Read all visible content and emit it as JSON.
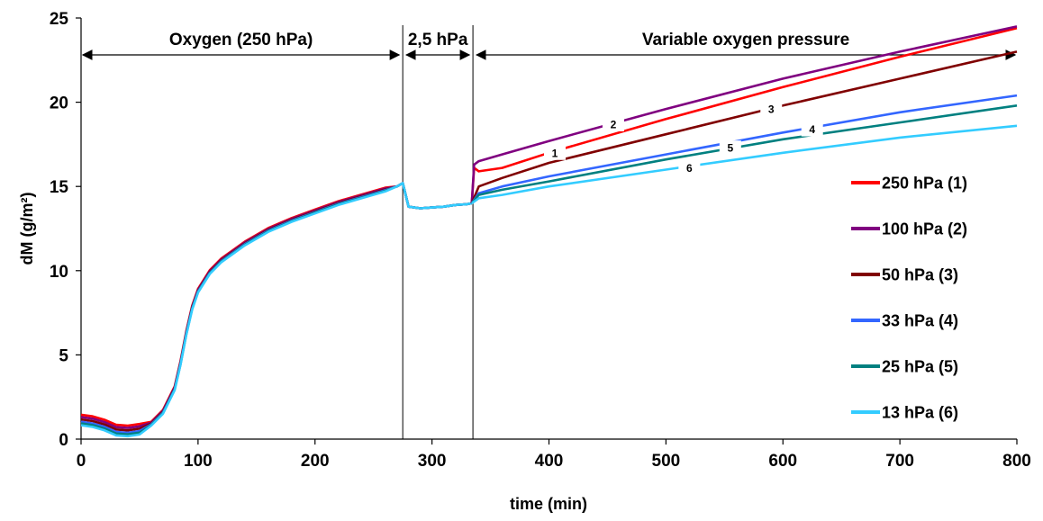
{
  "chart_data": {
    "type": "line",
    "xlabel": "time (min)",
    "ylabel": "dM (g/m²)",
    "xlim": [
      0,
      800
    ],
    "ylim": [
      0,
      25
    ],
    "x_ticks": [
      "0",
      "100",
      "200",
      "300",
      "400",
      "500",
      "600",
      "700",
      "800"
    ],
    "y_ticks": [
      "0",
      "5",
      "10",
      "15",
      "20",
      "25"
    ],
    "grid": false,
    "legend_position": "right",
    "phases": [
      {
        "label": "Oxygen (250 hPa)",
        "x_start": 0,
        "x_end": 275
      },
      {
        "label": "2,5 hPa",
        "x_start": 275,
        "x_end": 335
      },
      {
        "label": "Variable oxygen pressure",
        "x_start": 335,
        "x_end": 800
      }
    ],
    "phase_boundaries": [
      275,
      335
    ],
    "common_curve": {
      "x": [
        0,
        10,
        20,
        30,
        40,
        50,
        60,
        70,
        80,
        85,
        90,
        95,
        100,
        110,
        120,
        140,
        160,
        180,
        200,
        220,
        240,
        260,
        270,
        275,
        280,
        290,
        300,
        310,
        320,
        330,
        334
      ],
      "y": [
        1.1,
        1.0,
        0.8,
        0.5,
        0.45,
        0.55,
        0.9,
        1.6,
        3.0,
        4.5,
        6.3,
        7.8,
        8.8,
        9.9,
        10.6,
        11.6,
        12.4,
        13.0,
        13.5,
        14.0,
        14.4,
        14.8,
        15.0,
        15.2,
        13.8,
        13.7,
        13.75,
        13.8,
        13.9,
        13.95,
        14.0
      ]
    },
    "series": [
      {
        "name": "250 hPa (1)",
        "label": "1",
        "color": "#ff0000",
        "x": [
          334,
          336,
          340,
          360,
          400,
          500,
          600,
          700,
          800
        ],
        "y": [
          14.0,
          16.1,
          15.9,
          16.1,
          17.0,
          19.0,
          20.9,
          22.7,
          24.4
        ]
      },
      {
        "name": "100 hPa (2)",
        "label": "2",
        "color": "#800080",
        "x": [
          334,
          336,
          340,
          360,
          400,
          500,
          600,
          700,
          800
        ],
        "y": [
          14.0,
          16.3,
          16.5,
          16.9,
          17.7,
          19.6,
          21.4,
          23.0,
          24.5
        ]
      },
      {
        "name": "50 hPa (3)",
        "label": "3",
        "color": "#800000",
        "x": [
          334,
          340,
          360,
          400,
          500,
          600,
          700,
          800
        ],
        "y": [
          14.0,
          15.0,
          15.5,
          16.4,
          18.1,
          19.8,
          21.4,
          23.0
        ]
      },
      {
        "name": "33 hPa (4)",
        "label": "4",
        "color": "#3366ff",
        "x": [
          334,
          340,
          360,
          400,
          500,
          600,
          700,
          800
        ],
        "y": [
          14.0,
          14.6,
          15.0,
          15.6,
          16.9,
          18.2,
          19.4,
          20.4
        ]
      },
      {
        "name": "25 hPa (5)",
        "label": "5",
        "color": "#008080",
        "x": [
          334,
          340,
          360,
          400,
          500,
          600,
          700,
          800
        ],
        "y": [
          14.0,
          14.5,
          14.8,
          15.3,
          16.6,
          17.8,
          18.8,
          19.8
        ]
      },
      {
        "name": "13 hPa (6)",
        "label": "6",
        "color": "#33ccff",
        "x": [
          334,
          340,
          360,
          400,
          500,
          600,
          700,
          800
        ],
        "y": [
          14.0,
          14.3,
          14.5,
          15.0,
          16.0,
          17.0,
          17.9,
          18.6
        ]
      }
    ],
    "line_labels": [
      {
        "text": "1",
        "x": 405,
        "y": 17.0
      },
      {
        "text": "2",
        "x": 455,
        "y": 18.7
      },
      {
        "text": "3",
        "x": 590,
        "y": 19.6
      },
      {
        "text": "4",
        "x": 625,
        "y": 18.4
      },
      {
        "text": "5",
        "x": 555,
        "y": 17.3
      },
      {
        "text": "6",
        "x": 520,
        "y": 16.1
      }
    ]
  }
}
